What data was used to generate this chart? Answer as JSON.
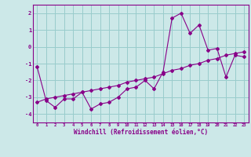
{
  "xlabel": "Windchill (Refroidissement éolien,°C)",
  "bg_color": "#cce8e8",
  "grid_color": "#99cccc",
  "line_color": "#880088",
  "x_hours": [
    0,
    1,
    2,
    3,
    4,
    5,
    6,
    7,
    8,
    9,
    10,
    11,
    12,
    13,
    14,
    15,
    16,
    17,
    18,
    19,
    20,
    21,
    22,
    23
  ],
  "y_windchill": [
    -1.2,
    -3.2,
    -3.6,
    -3.1,
    -3.1,
    -2.7,
    -3.7,
    -3.4,
    -3.3,
    -3.0,
    -2.5,
    -2.4,
    -2.0,
    -2.5,
    -1.5,
    1.7,
    2.0,
    0.8,
    1.3,
    -0.2,
    -0.1,
    -1.8,
    -0.5,
    -0.6
  ],
  "y_trend": [
    -3.3,
    -3.1,
    -3.0,
    -2.9,
    -2.8,
    -2.7,
    -2.6,
    -2.5,
    -2.4,
    -2.3,
    -2.1,
    -2.0,
    -1.9,
    -1.8,
    -1.6,
    -1.4,
    -1.3,
    -1.1,
    -1.0,
    -0.8,
    -0.7,
    -0.5,
    -0.4,
    -0.3
  ],
  "ylim": [
    -4.5,
    2.5
  ],
  "yticks": [
    -4,
    -3,
    -2,
    -1,
    0,
    1,
    2
  ],
  "xlim": [
    -0.5,
    23.5
  ]
}
